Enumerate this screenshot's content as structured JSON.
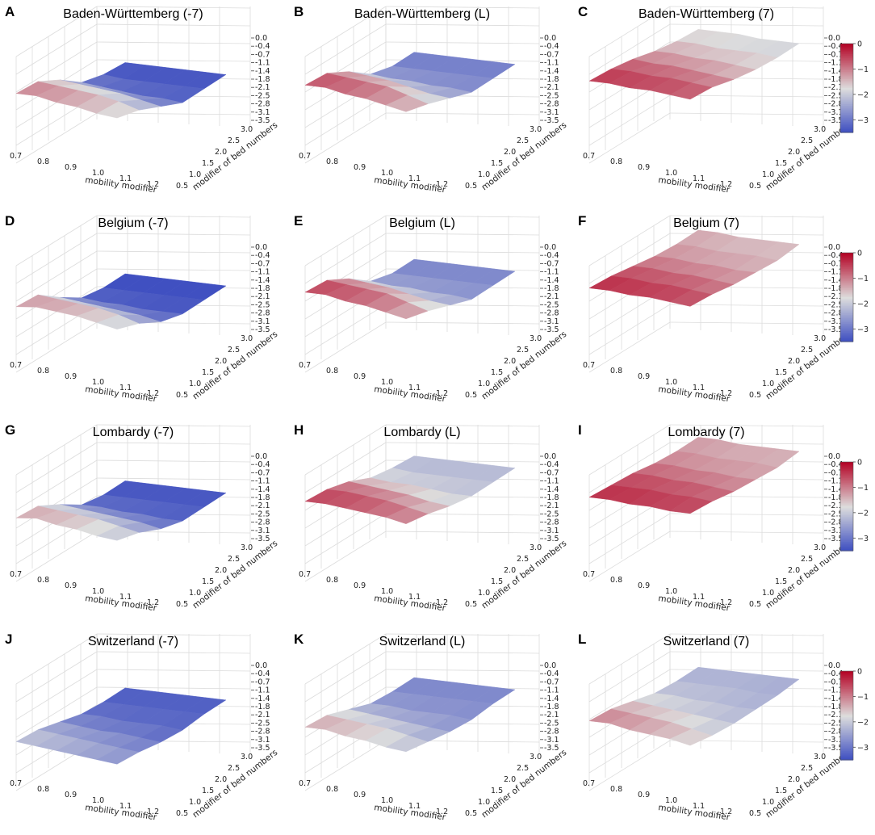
{
  "figure": {
    "type": "surface3d_grid",
    "rows": 4,
    "cols": 3
  },
  "colorbar": {
    "ticks": [
      "0",
      "−1",
      "−2",
      "−3"
    ],
    "tick_values": [
      0,
      -1,
      -2,
      -3
    ],
    "range": [
      -3.5,
      0
    ],
    "colormap": "coolwarm",
    "low_color": "#3b4cc0",
    "mid_color": "#dddddd",
    "high_color": "#b40426"
  },
  "chart_data": [
    {
      "letter": "A",
      "title": "Baden-Württemberg (-7)",
      "type": "surface3d",
      "xlabel": "mobility modifier",
      "ylabel": "modifier of bed numbers",
      "x_ticks": [
        "0.7",
        "0.8",
        "0.9",
        "1.0",
        "1.1",
        "1.2"
      ],
      "y_ticks": [
        "0.5",
        "1.0",
        "1.5",
        "2.0",
        "2.5",
        "3.0"
      ],
      "z_ticks": [
        "0.0",
        "-0.4",
        "-0.7",
        "-1.1",
        "-1.4",
        "-1.8",
        "-2.1",
        "-2.5",
        "-2.8",
        "-3.1",
        "-3.5"
      ],
      "zlim": [
        -3.5,
        0
      ],
      "z": [
        [
          -1.0,
          -1.2,
          -1.9,
          -2.8,
          -3.2,
          -3.4
        ],
        [
          -1.0,
          -1.3,
          -2.0,
          -2.9,
          -3.3,
          -3.4
        ],
        [
          -1.2,
          -1.4,
          -2.1,
          -3.0,
          -3.3,
          -3.4
        ],
        [
          -1.3,
          -1.5,
          -2.2,
          -3.1,
          -3.3,
          -3.4
        ],
        [
          -1.5,
          -1.7,
          -2.4,
          -3.1,
          -3.3,
          -3.4
        ],
        [
          -1.6,
          -2.0,
          -2.6,
          -3.2,
          -3.3,
          -3.4
        ]
      ]
    },
    {
      "letter": "B",
      "title": "Baden-Württemberg (L)",
      "type": "surface3d",
      "xlabel": "mobility modifier",
      "ylabel": "modifier of bed numbers",
      "x_ticks": [
        "0.7",
        "0.8",
        "0.9",
        "1.0",
        "1.1",
        "1.2"
      ],
      "y_ticks": [
        "0.5",
        "1.0",
        "1.5",
        "2.0",
        "2.5",
        "3.0"
      ],
      "z_ticks": [
        "0.0",
        "-0.4",
        "-0.7",
        "-1.1",
        "-1.4",
        "-1.8",
        "-2.1",
        "-2.5",
        "-2.8",
        "-3.1",
        "-3.5"
      ],
      "zlim": [
        -3.5,
        0
      ],
      "z": [
        [
          -0.6,
          -0.8,
          -1.5,
          -2.4,
          -2.8,
          -2.9
        ],
        [
          -0.6,
          -0.9,
          -1.6,
          -2.5,
          -2.8,
          -2.9
        ],
        [
          -0.8,
          -1.0,
          -1.7,
          -2.5,
          -2.8,
          -2.9
        ],
        [
          -0.9,
          -1.1,
          -1.9,
          -2.6,
          -2.8,
          -2.9
        ],
        [
          -1.1,
          -1.4,
          -2.1,
          -2.6,
          -2.8,
          -2.9
        ],
        [
          -1.3,
          -1.7,
          -2.2,
          -2.7,
          -2.8,
          -2.9
        ]
      ]
    },
    {
      "letter": "C",
      "title": "Baden-Württemberg (7)",
      "type": "surface3d",
      "xlabel": "mobility modifier",
      "ylabel": "modifier of bed numbers",
      "x_ticks": [
        "0.7",
        "0.8",
        "0.9",
        "1.0",
        "1.1",
        "1.2"
      ],
      "y_ticks": [
        "0.5",
        "1.0",
        "1.5",
        "2.0",
        "2.5",
        "3.0"
      ],
      "z_ticks": [
        "0.0",
        "-0.4",
        "-0.7",
        "-1.1",
        "-1.4",
        "-1.8",
        "-2.1",
        "-2.5",
        "-2.8",
        "-3.1",
        "-3.5"
      ],
      "zlim": [
        -3.5,
        0
      ],
      "z": [
        [
          -0.4,
          -0.6,
          -0.9,
          -1.3,
          -1.6,
          -1.8
        ],
        [
          -0.4,
          -0.6,
          -1.0,
          -1.3,
          -1.6,
          -1.8
        ],
        [
          -0.5,
          -0.7,
          -1.0,
          -1.4,
          -1.7,
          -1.8
        ],
        [
          -0.5,
          -0.7,
          -1.1,
          -1.4,
          -1.7,
          -1.9
        ],
        [
          -0.6,
          -0.8,
          -1.2,
          -1.5,
          -1.7,
          -1.9
        ],
        [
          -0.7,
          -0.9,
          -1.3,
          -1.6,
          -1.8,
          -1.9
        ]
      ]
    },
    {
      "letter": "D",
      "title": "Belgium (-7)",
      "type": "surface3d",
      "xlabel": "mobility modifier",
      "ylabel": "modifier of bed numbers",
      "x_ticks": [
        "0.7",
        "0.8",
        "0.9",
        "1.0",
        "1.1",
        "1.2"
      ],
      "y_ticks": [
        "0.5",
        "1.0",
        "1.5",
        "2.0",
        "2.5",
        "3.0"
      ],
      "z_ticks": [
        "0.0",
        "-0.4",
        "-0.7",
        "-1.1",
        "-1.4",
        "-1.8",
        "-2.1",
        "-2.5",
        "-2.8",
        "-3.1",
        "-3.5"
      ],
      "zlim": [
        -3.5,
        0
      ],
      "z": [
        [
          -1.2,
          -1.4,
          -2.3,
          -3.1,
          -3.4,
          -3.5
        ],
        [
          -1.1,
          -1.5,
          -2.4,
          -3.2,
          -3.4,
          -3.5
        ],
        [
          -1.2,
          -1.6,
          -2.5,
          -3.2,
          -3.4,
          -3.5
        ],
        [
          -1.3,
          -1.7,
          -2.6,
          -3.3,
          -3.4,
          -3.5
        ],
        [
          -1.5,
          -1.9,
          -2.7,
          -3.3,
          -3.4,
          -3.5
        ],
        [
          -1.7,
          -2.2,
          -2.9,
          -3.3,
          -3.4,
          -3.5
        ]
      ]
    },
    {
      "letter": "E",
      "title": "Belgium (L)",
      "type": "surface3d",
      "xlabel": "mobility modifier",
      "ylabel": "modifier of bed numbers",
      "x_ticks": [
        "0.7",
        "0.8",
        "0.9",
        "1.0",
        "1.1",
        "1.2"
      ],
      "y_ticks": [
        "0.5",
        "1.0",
        "1.5",
        "2.0",
        "2.5",
        "3.0"
      ],
      "z_ticks": [
        "0.0",
        "-0.4",
        "-0.7",
        "-1.1",
        "-1.4",
        "-1.8",
        "-2.1",
        "-2.5",
        "-2.8",
        "-3.1",
        "-3.5"
      ],
      "zlim": [
        -3.5,
        0
      ],
      "z": [
        [
          -0.5,
          -0.7,
          -1.4,
          -2.3,
          -2.7,
          -2.8
        ],
        [
          -0.5,
          -0.8,
          -1.5,
          -2.4,
          -2.7,
          -2.8
        ],
        [
          -0.7,
          -0.9,
          -1.6,
          -2.4,
          -2.7,
          -2.8
        ],
        [
          -0.8,
          -1.0,
          -1.8,
          -2.5,
          -2.7,
          -2.8
        ],
        [
          -1.0,
          -1.3,
          -2.0,
          -2.5,
          -2.7,
          -2.8
        ],
        [
          -1.2,
          -1.6,
          -2.1,
          -2.6,
          -2.7,
          -2.8
        ]
      ]
    },
    {
      "letter": "F",
      "title": "Belgium (7)",
      "type": "surface3d",
      "xlabel": "mobility modifier",
      "ylabel": "modifier of bed numbers",
      "x_ticks": [
        "0.7",
        "0.8",
        "0.9",
        "1.0",
        "1.1",
        "1.2"
      ],
      "y_ticks": [
        "0.5",
        "1.0",
        "1.5",
        "2.0",
        "2.5",
        "3.0"
      ],
      "z_ticks": [
        "0.0",
        "-0.4",
        "-0.7",
        "-1.1",
        "-1.4",
        "-1.8",
        "-2.1",
        "-2.5",
        "-2.8",
        "-3.1",
        "-3.5"
      ],
      "zlim": [
        -3.5,
        0
      ],
      "z": [
        [
          -0.3,
          -0.5,
          -0.8,
          -1.1,
          -1.3,
          -1.4
        ],
        [
          -0.3,
          -0.5,
          -0.8,
          -1.1,
          -1.3,
          -1.4
        ],
        [
          -0.4,
          -0.6,
          -0.9,
          -1.2,
          -1.4,
          -1.5
        ],
        [
          -0.4,
          -0.6,
          -0.9,
          -1.2,
          -1.4,
          -1.5
        ],
        [
          -0.5,
          -0.7,
          -1.0,
          -1.3,
          -1.4,
          -1.5
        ],
        [
          -0.6,
          -0.8,
          -1.1,
          -1.3,
          -1.5,
          -1.5
        ]
      ]
    },
    {
      "letter": "G",
      "title": "Lombardy (-7)",
      "type": "surface3d",
      "xlabel": "mobility modifier",
      "ylabel": "modifier of bed numbers",
      "x_ticks": [
        "0.7",
        "0.8",
        "0.9",
        "1.0",
        "1.1",
        "1.2"
      ],
      "y_ticks": [
        "0.5",
        "1.0",
        "1.5",
        "2.0",
        "2.5",
        "3.0"
      ],
      "z_ticks": [
        "0.0",
        "-0.4",
        "-0.7",
        "-1.1",
        "-1.4",
        "-1.8",
        "-2.1",
        "-2.5",
        "-2.8",
        "-3.1",
        "-3.5"
      ],
      "zlim": [
        -3.5,
        0
      ],
      "z": [
        [
          -1.3,
          -1.5,
          -2.2,
          -3.0,
          -3.3,
          -3.4
        ],
        [
          -1.2,
          -1.6,
          -2.3,
          -3.0,
          -3.3,
          -3.4
        ],
        [
          -1.4,
          -1.7,
          -2.4,
          -3.1,
          -3.3,
          -3.4
        ],
        [
          -1.5,
          -1.8,
          -2.5,
          -3.1,
          -3.3,
          -3.4
        ],
        [
          -1.7,
          -2.0,
          -2.6,
          -3.2,
          -3.3,
          -3.4
        ],
        [
          -1.8,
          -2.2,
          -2.8,
          -3.2,
          -3.3,
          -3.4
        ]
      ]
    },
    {
      "letter": "H",
      "title": "Lombardy (L)",
      "type": "surface3d",
      "xlabel": "mobility modifier",
      "ylabel": "modifier of bed numbers",
      "x_ticks": [
        "0.7",
        "0.8",
        "0.9",
        "1.0",
        "1.1",
        "1.2"
      ],
      "y_ticks": [
        "0.5",
        "1.0",
        "1.5",
        "2.0",
        "2.5",
        "3.0"
      ],
      "z_ticks": [
        "0.0",
        "-0.4",
        "-0.7",
        "-1.1",
        "-1.4",
        "-1.8",
        "-2.1",
        "-2.5",
        "-2.8",
        "-3.1",
        "-3.5"
      ],
      "zlim": [
        -3.5,
        0
      ],
      "z": [
        [
          -0.5,
          -0.7,
          -1.1,
          -1.7,
          -2.0,
          -2.2
        ],
        [
          -0.5,
          -0.7,
          -1.2,
          -1.8,
          -2.1,
          -2.2
        ],
        [
          -0.6,
          -0.8,
          -1.3,
          -1.8,
          -2.1,
          -2.2
        ],
        [
          -0.7,
          -0.9,
          -1.4,
          -1.9,
          -2.1,
          -2.2
        ],
        [
          -0.8,
          -1.1,
          -1.6,
          -2.0,
          -2.1,
          -2.2
        ],
        [
          -1.0,
          -1.3,
          -1.7,
          -2.0,
          -2.1,
          -2.2
        ]
      ]
    },
    {
      "letter": "I",
      "title": "Lombardy (7)",
      "type": "surface3d",
      "xlabel": "mobility modifier",
      "ylabel": "modifier of bed numbers",
      "x_ticks": [
        "0.7",
        "0.8",
        "0.9",
        "1.0",
        "1.1",
        "1.2"
      ],
      "y_ticks": [
        "0.5",
        "1.0",
        "1.5",
        "2.0",
        "2.5",
        "3.0"
      ],
      "z_ticks": [
        "0.0",
        "-0.4",
        "-0.7",
        "-1.1",
        "-1.4",
        "-1.8",
        "-2.1",
        "-2.5",
        "-2.8",
        "-3.1",
        "-3.5"
      ],
      "zlim": [
        -3.5,
        0
      ],
      "z": [
        [
          -0.3,
          -0.5,
          -0.7,
          -1.0,
          -1.2,
          -1.3
        ],
        [
          -0.3,
          -0.5,
          -0.7,
          -1.0,
          -1.2,
          -1.3
        ],
        [
          -0.4,
          -0.5,
          -0.8,
          -1.1,
          -1.3,
          -1.4
        ],
        [
          -0.4,
          -0.6,
          -0.8,
          -1.1,
          -1.3,
          -1.4
        ],
        [
          -0.5,
          -0.6,
          -0.9,
          -1.2,
          -1.3,
          -1.4
        ],
        [
          -0.5,
          -0.7,
          -1.0,
          -1.2,
          -1.4,
          -1.4
        ]
      ]
    },
    {
      "letter": "J",
      "title": "Switzerland (-7)",
      "type": "surface3d",
      "xlabel": "mobility modifier",
      "ylabel": "modifier of bed numbers",
      "x_ticks": [
        "0.7",
        "0.8",
        "0.9",
        "1.0",
        "1.1",
        "1.2"
      ],
      "y_ticks": [
        "0.5",
        "1.0",
        "1.5",
        "2.0",
        "2.5",
        "3.0"
      ],
      "z_ticks": [
        "0.0",
        "-0.4",
        "-0.7",
        "-1.1",
        "-1.4",
        "-1.8",
        "-2.1",
        "-2.5",
        "-2.8",
        "-3.1",
        "-3.5"
      ],
      "zlim": [
        -3.5,
        0
      ],
      "z": [
        [
          -2.0,
          -2.2,
          -2.6,
          -3.0,
          -3.2,
          -3.3
        ],
        [
          -2.1,
          -2.3,
          -2.7,
          -3.0,
          -3.2,
          -3.3
        ],
        [
          -2.2,
          -2.4,
          -2.8,
          -3.1,
          -3.2,
          -3.3
        ],
        [
          -2.3,
          -2.5,
          -2.8,
          -3.1,
          -3.2,
          -3.3
        ],
        [
          -2.4,
          -2.6,
          -2.9,
          -3.1,
          -3.2,
          -3.3
        ],
        [
          -2.5,
          -2.7,
          -3.0,
          -3.2,
          -3.2,
          -3.3
        ]
      ]
    },
    {
      "letter": "K",
      "title": "Switzerland (L)",
      "type": "surface3d",
      "xlabel": "mobility modifier",
      "ylabel": "modifier of bed numbers",
      "x_ticks": [
        "0.7",
        "0.8",
        "0.9",
        "1.0",
        "1.1",
        "1.2"
      ],
      "y_ticks": [
        "0.5",
        "1.0",
        "1.5",
        "2.0",
        "2.5",
        "3.0"
      ],
      "z_ticks": [
        "0.0",
        "-0.4",
        "-0.7",
        "-1.1",
        "-1.4",
        "-1.8",
        "-2.1",
        "-2.5",
        "-2.8",
        "-3.1",
        "-3.5"
      ],
      "zlim": [
        -3.5,
        0
      ],
      "z": [
        [
          -1.3,
          -1.5,
          -2.0,
          -2.5,
          -2.7,
          -2.8
        ],
        [
          -1.3,
          -1.6,
          -2.1,
          -2.5,
          -2.7,
          -2.8
        ],
        [
          -1.5,
          -1.7,
          -2.2,
          -2.6,
          -2.7,
          -2.8
        ],
        [
          -1.6,
          -1.8,
          -2.3,
          -2.6,
          -2.7,
          -2.8
        ],
        [
          -1.8,
          -2.0,
          -2.4,
          -2.6,
          -2.7,
          -2.8
        ],
        [
          -1.9,
          -2.2,
          -2.5,
          -2.7,
          -2.7,
          -2.8
        ]
      ]
    },
    {
      "letter": "L",
      "title": "Switzerland (7)",
      "type": "surface3d",
      "xlabel": "mobility modifier",
      "ylabel": "modifier of bed numbers",
      "x_ticks": [
        "0.7",
        "0.8",
        "0.9",
        "1.0",
        "1.1",
        "1.2"
      ],
      "y_ticks": [
        "0.5",
        "1.0",
        "1.5",
        "2.0",
        "2.5",
        "3.0"
      ],
      "z_ticks": [
        "0.0",
        "-0.4",
        "-0.7",
        "-1.1",
        "-1.4",
        "-1.8",
        "-2.1",
        "-2.5",
        "-2.8",
        "-3.1",
        "-3.5"
      ],
      "zlim": [
        -3.5,
        0
      ],
      "z": [
        [
          -1.0,
          -1.2,
          -1.6,
          -2.0,
          -2.2,
          -2.3
        ],
        [
          -1.0,
          -1.3,
          -1.7,
          -2.0,
          -2.2,
          -2.3
        ],
        [
          -1.2,
          -1.4,
          -1.8,
          -2.1,
          -2.2,
          -2.3
        ],
        [
          -1.3,
          -1.5,
          -1.9,
          -2.1,
          -2.2,
          -2.3
        ],
        [
          -1.4,
          -1.7,
          -2.0,
          -2.2,
          -2.3,
          -2.3
        ],
        [
          -1.6,
          -1.9,
          -2.1,
          -2.2,
          -2.3,
          -2.3
        ]
      ]
    }
  ]
}
